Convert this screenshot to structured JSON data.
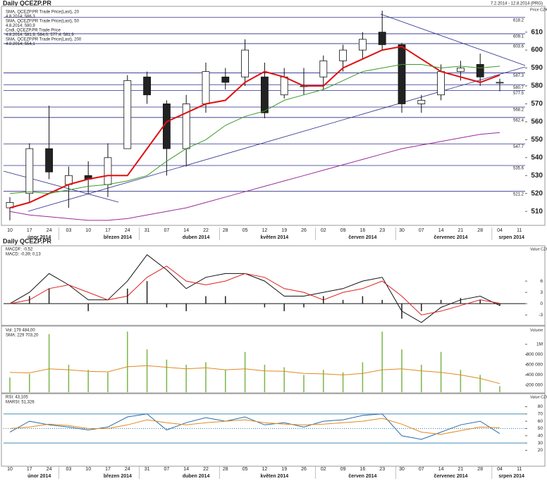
{
  "chart_data": [
    {
      "type": "candlestick",
      "title": "Daily QCEZP.PR",
      "subtitle": "7.2.2014 - 12.8.2014 (PRG)",
      "y_axis_label": "Price CZK",
      "categories": [
        "10",
        "17",
        "24",
        "03",
        "10",
        "17",
        "24",
        "31",
        "07",
        "14",
        "22",
        "28",
        "05",
        "12",
        "19",
        "26",
        "02",
        "09",
        "16",
        "23",
        "30",
        "07",
        "14",
        "21",
        "28",
        "04",
        "11"
      ],
      "months": [
        "únor 2014",
        "březen 2014",
        "duben 2014",
        "květen 2014",
        "červen 2014",
        "červenec 2014",
        "srpen 2014"
      ],
      "candle_legend": "Cndl, QCEZP.PR Trade Price",
      "candle_last": "4.8.2014; 581,9; 584,0; 577,4; 581,9",
      "open": [
        512,
        520,
        545,
        525,
        530,
        525,
        545,
        585,
        570,
        545,
        570,
        585,
        585,
        585,
        575,
        580,
        585,
        594,
        600,
        610,
        603,
        570,
        575,
        588,
        592,
        582,
        null
      ],
      "high": [
        518,
        548,
        569,
        535,
        538,
        548,
        586,
        588,
        572,
        575,
        593,
        590,
        606,
        593,
        590,
        590,
        597,
        603,
        610,
        622,
        604,
        575,
        592,
        594,
        598,
        584,
        null
      ],
      "low": [
        505,
        515,
        528,
        512,
        520,
        518,
        545,
        570,
        530,
        535,
        565,
        578,
        580,
        562,
        573,
        575,
        578,
        588,
        595,
        600,
        565,
        565,
        572,
        583,
        580,
        577,
        null
      ],
      "close": [
        515,
        545,
        532,
        530,
        528,
        540,
        583,
        575,
        545,
        570,
        588,
        582,
        600,
        565,
        585,
        580,
        594,
        600,
        606,
        603,
        570,
        572,
        588,
        590,
        585,
        582,
        null
      ],
      "series": [
        {
          "name": "SMA, QCEZP.PR Trade Price(Last), 20",
          "last": "4.8.2014; 586,3",
          "color": "#e01010",
          "width": 2,
          "values": [
            512,
            515,
            520,
            525,
            528,
            530,
            530,
            545,
            560,
            565,
            570,
            572,
            582,
            588,
            585,
            580,
            580,
            590,
            595,
            600,
            602,
            595,
            588,
            585,
            582,
            586,
            null
          ]
        },
        {
          "name": "SMA, QCEZP.PR Trade Price(Last), 50",
          "last": "4.8.2014; 590,9",
          "color": "#3a9a2a",
          "width": 1,
          "values": [
            520,
            521,
            520,
            522,
            524,
            525,
            527,
            530,
            538,
            545,
            550,
            558,
            563,
            566,
            572,
            575,
            578,
            583,
            588,
            590,
            592,
            592,
            590,
            591,
            590,
            591,
            null
          ]
        },
        {
          "name": "SMA, QCEZP.PR Trade Price(Last), 200",
          "last": "4.8.2014; 554,1",
          "color": "#9a2a9a",
          "width": 1,
          "values": [
            510,
            508,
            507,
            506,
            505,
            505,
            506,
            508,
            510,
            512,
            515,
            518,
            521,
            524,
            527,
            530,
            533,
            536,
            539,
            542,
            545,
            547,
            549,
            551,
            553,
            554,
            null
          ]
        }
      ],
      "levels": [
        618.2,
        609.1,
        603.6,
        587.3,
        580.7,
        577.5,
        568.2,
        562.4,
        547.7,
        535.6,
        521.2
      ],
      "ylim": [
        503,
        624
      ],
      "yticks": [
        510,
        520,
        530,
        540,
        550,
        560,
        570,
        580,
        590,
        600,
        610
      ]
    },
    {
      "type": "line",
      "title": "Daily QCEZP.PR",
      "y_axis_label": "Value CZK",
      "series": [
        {
          "name": "MACDF: -0,52",
          "style": "line",
          "color": "#111111",
          "values": [
            0,
            3,
            8,
            5,
            1,
            1,
            6,
            13,
            9,
            4,
            7,
            8,
            8,
            6,
            2,
            2,
            3,
            4,
            6,
            7,
            -2,
            -5,
            -1,
            1,
            2,
            -0.5,
            null
          ]
        },
        {
          "name": "MACD: -0,39; 0,13",
          "style": "line",
          "color": "#e02020",
          "values": [
            0,
            1,
            4,
            5,
            3,
            1,
            2,
            7,
            10,
            6,
            5,
            6,
            8,
            7,
            4,
            3,
            1,
            3,
            4,
            6,
            2,
            -3,
            -2,
            -0.5,
            1,
            0.1,
            null
          ]
        },
        {
          "style": "bar",
          "color": "#222222",
          "values": [
            0,
            2,
            4,
            0,
            -2,
            0,
            4,
            6,
            -1,
            -2,
            2,
            2,
            0,
            -1,
            -2,
            -1,
            2,
            1,
            2,
            1,
            -4,
            -2,
            1,
            1.5,
            1,
            -0.6,
            null
          ]
        }
      ],
      "ylim": [
        -5.4,
        15.2
      ],
      "yticks": [
        -3,
        0,
        3,
        6
      ]
    },
    {
      "type": "bar",
      "y_axis_label": "Volume",
      "series": [
        {
          "name": "Vol: 179 484,00",
          "style": "bar",
          "color": "#7ab648",
          "values": [
            350000,
            420000,
            1200000,
            600000,
            500000,
            450000,
            1250000,
            900000,
            700000,
            600000,
            650000,
            500000,
            850000,
            600000,
            550000,
            400000,
            500000,
            450000,
            650000,
            1250000,
            900000,
            600000,
            850000,
            500000,
            400000,
            180000,
            null
          ]
        },
        {
          "name": "SMA: 229 703,20",
          "style": "line",
          "color": "#e08a20",
          "values": [
            450000,
            440000,
            520000,
            500000,
            470000,
            460000,
            560000,
            580000,
            550000,
            520000,
            540000,
            500000,
            520000,
            480000,
            470000,
            430000,
            420000,
            400000,
            430000,
            500000,
            520000,
            480000,
            450000,
            400000,
            330000,
            230000,
            null
          ]
        }
      ],
      "ylim": [
        60000,
        1330000
      ],
      "yticks": [
        {
          "value": 200000,
          "label": "200 000"
        },
        {
          "value": 400000,
          "label": "400 000"
        },
        {
          "value": 600000,
          "label": "600 000"
        },
        {
          "value": 800000,
          "label": "800 000"
        },
        {
          "value": 1000000,
          "label": "1M"
        }
      ]
    },
    {
      "type": "line",
      "y_axis_label": "Value CZK",
      "series": [
        {
          "name": "RSI: 43,105",
          "style": "line",
          "color": "#2a6aa8",
          "values": [
            45,
            60,
            55,
            52,
            48,
            52,
            66,
            70,
            48,
            58,
            65,
            60,
            66,
            55,
            58,
            52,
            60,
            62,
            68,
            70,
            40,
            35,
            45,
            55,
            60,
            43,
            null
          ]
        },
        {
          "name": "MARSI: 51,326",
          "style": "line",
          "color": "#e08a20",
          "values": [
            50,
            52,
            56,
            54,
            50,
            50,
            55,
            62,
            58,
            55,
            58,
            60,
            62,
            58,
            56,
            55,
            56,
            58,
            60,
            64,
            56,
            45,
            42,
            47,
            52,
            51,
            null
          ]
        }
      ],
      "levels": [
        70,
        30
      ],
      "dotted_level": 50,
      "ylim": [
        0,
        97
      ],
      "yticks": [
        20,
        30,
        40,
        50,
        60,
        70,
        80
      ]
    }
  ]
}
